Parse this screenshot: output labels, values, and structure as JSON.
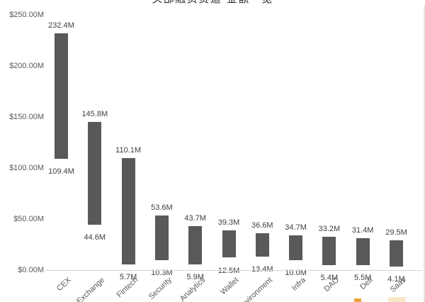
{
  "chart_data": {
    "type": "bar",
    "subtype": "floating-range-bar",
    "title": "头部融资赛道·金额一览",
    "categories": [
      "CEX",
      "Exchange",
      "Fintech",
      "Security",
      "Analytics",
      "Wallet",
      "Environment",
      "Infra",
      "DAO",
      "Defi",
      "Saas"
    ],
    "series": [
      {
        "name": "max",
        "values": [
          232.4,
          145.8,
          110.1,
          53.6,
          43.7,
          39.3,
          36.6,
          34.7,
          33.2,
          31.4,
          29.5
        ]
      },
      {
        "name": "min",
        "values": [
          109.4,
          44.6,
          5.7,
          10.3,
          5.9,
          12.5,
          13.4,
          10.0,
          5.4,
          5.5,
          4.1
        ]
      }
    ],
    "value_label_suffix": "M",
    "unit": "USD millions",
    "ylim": [
      0,
      250
    ],
    "yticks": [
      {
        "label": "$0.00M",
        "value": 0
      },
      {
        "label": "$50.00M",
        "value": 50
      },
      {
        "label": "$100.00M",
        "value": 100
      },
      {
        "label": "$150.00M",
        "value": 150
      },
      {
        "label": "$200.00M",
        "value": 200
      },
      {
        "label": "$250.00M",
        "value": 250
      }
    ],
    "grid": false,
    "legend": "none"
  },
  "colors": {
    "bar": "#595959",
    "value_label": "#404040",
    "axis_label": "#595959",
    "baseline": "#d6d6d6",
    "watermark_orange": "#EDA33B",
    "watermark_light": "#F6E3BC"
  }
}
